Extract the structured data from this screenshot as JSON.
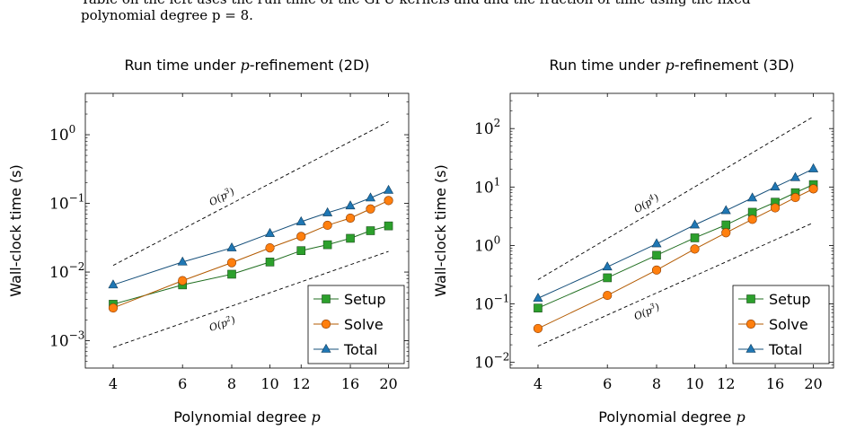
{
  "caption": {
    "line1": "Table on the left uses the run time of the GPU kernels and and the fraction of time using the fixed",
    "line2": "polynomial degree p = 8."
  },
  "chart_data": [
    {
      "type": "line",
      "title_prefix": "Run time under ",
      "title_var": "p",
      "title_suffix": "-refinement (2D)",
      "xlabel_prefix": "Polynomial degree ",
      "xlabel_var": "p",
      "ylabel": "Wall-clock time (s)",
      "x_scale": "log",
      "y_scale": "log",
      "xlim": [
        3.4,
        22.5
      ],
      "ylim": [
        0.0004,
        4
      ],
      "x_ticks": [
        4,
        6,
        8,
        10,
        12,
        16,
        20
      ],
      "x_tick_labels": [
        "4",
        "6",
        "8",
        "10",
        "12",
        "16",
        "20"
      ],
      "y_ticks": [
        0.001,
        0.01,
        0.1,
        1
      ],
      "y_tick_exponents": [
        "−3",
        "−2",
        "−1",
        "0"
      ],
      "x": [
        4,
        6,
        8,
        10,
        12,
        14,
        16,
        18,
        20
      ],
      "series": [
        {
          "name": "Setup",
          "color": "#2ca02c",
          "marker": "square",
          "values": [
            0.0034,
            0.0065,
            0.0093,
            0.014,
            0.0205,
            0.025,
            0.031,
            0.04,
            0.047
          ]
        },
        {
          "name": "Solve",
          "color": "#ff7f0e",
          "marker": "circle",
          "values": [
            0.003,
            0.0075,
            0.0137,
            0.0225,
            0.033,
            0.048,
            0.061,
            0.083,
            0.11
          ]
        },
        {
          "name": "Total",
          "color": "#1f77b4",
          "marker": "triangle",
          "values": [
            0.0065,
            0.014,
            0.0225,
            0.0365,
            0.054,
            0.073,
            0.092,
            0.12,
            0.155
          ]
        }
      ],
      "reference_lines": [
        {
          "label_base": "O(p",
          "label_exp": "3",
          "x": [
            4,
            20
          ],
          "y": [
            0.0125,
            1.55
          ]
        },
        {
          "label_base": "O(p",
          "label_exp": "2",
          "x": [
            4,
            20
          ],
          "y": [
            0.0008,
            0.02
          ]
        }
      ],
      "legend": "bottom-right",
      "grid": false
    },
    {
      "type": "line",
      "title_prefix": "Run time under ",
      "title_var": "p",
      "title_suffix": "-refinement (3D)",
      "xlabel_prefix": "Polynomial degree ",
      "xlabel_var": "p",
      "ylabel": "Wall-clock time (s)",
      "x_scale": "log",
      "y_scale": "log",
      "xlim": [
        3.4,
        22.5
      ],
      "ylim": [
        0.008,
        400
      ],
      "x_ticks": [
        4,
        6,
        8,
        10,
        12,
        16,
        20
      ],
      "x_tick_labels": [
        "4",
        "6",
        "8",
        "10",
        "12",
        "16",
        "20"
      ],
      "y_ticks": [
        0.01,
        0.1,
        1,
        10,
        100
      ],
      "y_tick_exponents": [
        "−2",
        "−1",
        "0",
        "1",
        "2"
      ],
      "x": [
        4,
        6,
        8,
        10,
        12,
        14,
        16,
        18,
        20
      ],
      "series": [
        {
          "name": "Setup",
          "color": "#2ca02c",
          "marker": "square",
          "values": [
            0.085,
            0.28,
            0.68,
            1.35,
            2.25,
            3.7,
            5.5,
            8.0,
            11.0
          ]
        },
        {
          "name": "Solve",
          "color": "#ff7f0e",
          "marker": "circle",
          "values": [
            0.038,
            0.14,
            0.38,
            0.87,
            1.65,
            2.8,
            4.4,
            6.6,
            9.3
          ]
        },
        {
          "name": "Total",
          "color": "#1f77b4",
          "marker": "triangle",
          "values": [
            0.125,
            0.43,
            1.07,
            2.25,
            3.95,
            6.5,
            10.0,
            14.5,
            20.5
          ]
        }
      ],
      "reference_lines": [
        {
          "label_base": "O(p",
          "label_exp": "4",
          "x": [
            4,
            20
          ],
          "y": [
            0.26,
            160
          ]
        },
        {
          "label_base": "O(p",
          "label_exp": "3",
          "x": [
            4,
            20
          ],
          "y": [
            0.019,
            2.45
          ]
        }
      ],
      "legend": "bottom-right",
      "grid": false
    }
  ]
}
